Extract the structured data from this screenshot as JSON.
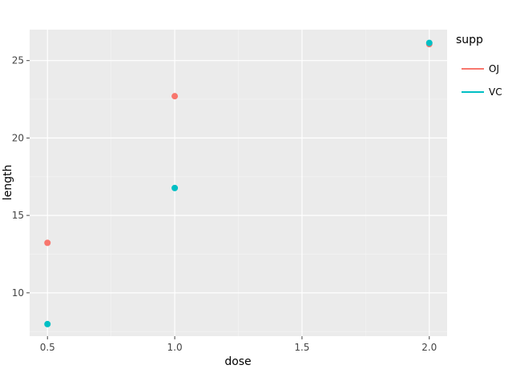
{
  "chart_data": {
    "type": "scatter",
    "title": "",
    "xlabel": "dose",
    "ylabel": "length",
    "xlim": [
      0.43,
      2.07
    ],
    "ylim": [
      7.2,
      27.0
    ],
    "x_ticks": [
      0.5,
      1.0,
      1.5,
      2.0
    ],
    "x_tick_labels": [
      "0.5",
      "1.0",
      "1.5",
      "2.0"
    ],
    "y_ticks": [
      10,
      15,
      20,
      25
    ],
    "y_tick_labels": [
      "10",
      "15",
      "20",
      "25"
    ],
    "grid": true,
    "legend": {
      "title": "supp",
      "placement": "right"
    },
    "series": [
      {
        "name": "OJ",
        "color": "#F8766D",
        "points": [
          {
            "x": 0.5,
            "y": 13.23
          },
          {
            "x": 1.0,
            "y": 22.7
          },
          {
            "x": 2.0,
            "y": 26.06
          }
        ]
      },
      {
        "name": "VC",
        "color": "#00BFC4",
        "points": [
          {
            "x": 0.5,
            "y": 7.98
          },
          {
            "x": 1.0,
            "y": 16.77
          },
          {
            "x": 2.0,
            "y": 26.14
          }
        ]
      }
    ]
  }
}
